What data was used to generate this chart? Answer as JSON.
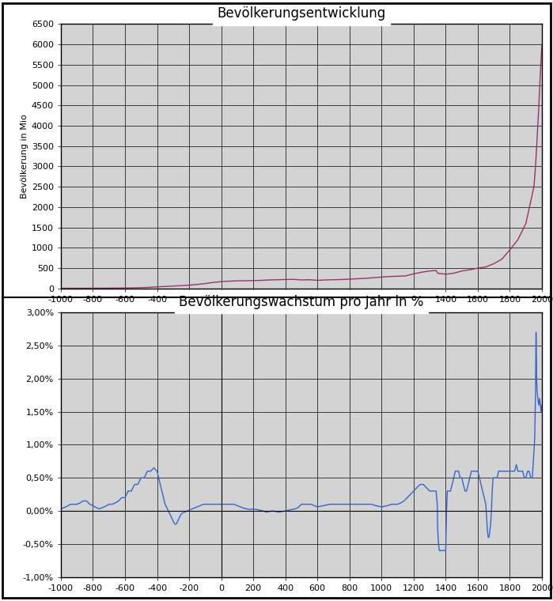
{
  "title1": "Bevölkerungsentwicklung",
  "title2": "Bevölkerungswachstum pro Jahr in %",
  "ylabel1": "Bevölkerung in Mio",
  "xmin": -1000,
  "xmax": 2000,
  "ylim1": [
    0,
    6500
  ],
  "ylim2": [
    -0.01,
    0.03
  ],
  "yticks1": [
    0,
    500,
    1000,
    1500,
    2000,
    2500,
    3000,
    3500,
    4000,
    4500,
    5000,
    5500,
    6000,
    6500
  ],
  "yticks2": [
    -0.01,
    -0.005,
    0.0,
    0.005,
    0.01,
    0.015,
    0.02,
    0.025,
    0.03
  ],
  "pop_color": "#993366",
  "growth_color": "#3366cc",
  "fig_bg_color": "#ffffff",
  "plot_bg_color": "#d3d3d3",
  "title_bg_color": "#ffffff",
  "pop_data": [
    [
      -1000,
      5
    ],
    [
      -950,
      5.2
    ],
    [
      -900,
      5.5
    ],
    [
      -850,
      6
    ],
    [
      -800,
      7
    ],
    [
      -750,
      8
    ],
    [
      -700,
      9
    ],
    [
      -650,
      10
    ],
    [
      -600,
      12
    ],
    [
      -550,
      15
    ],
    [
      -500,
      20
    ],
    [
      -450,
      28
    ],
    [
      -400,
      40
    ],
    [
      -350,
      50
    ],
    [
      -300,
      60
    ],
    [
      -250,
      70
    ],
    [
      -200,
      80
    ],
    [
      -150,
      100
    ],
    [
      -100,
      120
    ],
    [
      -50,
      150
    ],
    [
      0,
      170
    ],
    [
      50,
      180
    ],
    [
      100,
      188
    ],
    [
      150,
      190
    ],
    [
      200,
      195
    ],
    [
      250,
      200
    ],
    [
      300,
      210
    ],
    [
      350,
      215
    ],
    [
      400,
      220
    ],
    [
      450,
      225
    ],
    [
      500,
      210
    ],
    [
      550,
      215
    ],
    [
      600,
      200
    ],
    [
      650,
      210
    ],
    [
      700,
      215
    ],
    [
      750,
      220
    ],
    [
      800,
      230
    ],
    [
      850,
      240
    ],
    [
      900,
      250
    ],
    [
      950,
      265
    ],
    [
      1000,
      280
    ],
    [
      1050,
      295
    ],
    [
      1100,
      300
    ],
    [
      1150,
      310
    ],
    [
      1200,
      360
    ],
    [
      1250,
      400
    ],
    [
      1300,
      430
    ],
    [
      1340,
      443
    ],
    [
      1350,
      375
    ],
    [
      1400,
      350
    ],
    [
      1450,
      375
    ],
    [
      1500,
      430
    ],
    [
      1550,
      460
    ],
    [
      1600,
      500
    ],
    [
      1650,
      530
    ],
    [
      1700,
      610
    ],
    [
      1750,
      720
    ],
    [
      1800,
      950
    ],
    [
      1850,
      1200
    ],
    [
      1900,
      1600
    ],
    [
      1950,
      2500
    ],
    [
      1960,
      3000
    ],
    [
      1970,
      3700
    ],
    [
      1980,
      4430
    ],
    [
      1990,
      5300
    ],
    [
      2000,
      6000
    ]
  ],
  "growth_data": [
    [
      -1000,
      0.0003
    ],
    [
      -980,
      0.0005
    ],
    [
      -960,
      0.0007
    ],
    [
      -940,
      0.001
    ],
    [
      -920,
      0.001
    ],
    [
      -900,
      0.001
    ],
    [
      -880,
      0.0012
    ],
    [
      -860,
      0.0015
    ],
    [
      -840,
      0.0015
    ],
    [
      -820,
      0.001
    ],
    [
      -800,
      0.0008
    ],
    [
      -780,
      0.0005
    ],
    [
      -760,
      0.0003
    ],
    [
      -740,
      0.0005
    ],
    [
      -720,
      0.0007
    ],
    [
      -700,
      0.001
    ],
    [
      -680,
      0.001
    ],
    [
      -660,
      0.0012
    ],
    [
      -640,
      0.0015
    ],
    [
      -620,
      0.002
    ],
    [
      -600,
      0.002
    ],
    [
      -580,
      0.003
    ],
    [
      -560,
      0.003
    ],
    [
      -540,
      0.004
    ],
    [
      -520,
      0.004
    ],
    [
      -500,
      0.005
    ],
    [
      -480,
      0.005
    ],
    [
      -460,
      0.006
    ],
    [
      -440,
      0.006
    ],
    [
      -420,
      0.0065
    ],
    [
      -400,
      0.006
    ],
    [
      -390,
      0.005
    ],
    [
      -380,
      0.004
    ],
    [
      -370,
      0.003
    ],
    [
      -360,
      0.002
    ],
    [
      -350,
      0.001
    ],
    [
      -340,
      0.0005
    ],
    [
      -330,
      0.0
    ],
    [
      -320,
      -0.0005
    ],
    [
      -310,
      -0.001
    ],
    [
      -300,
      -0.0015
    ],
    [
      -290,
      -0.002
    ],
    [
      -280,
      -0.002
    ],
    [
      -270,
      -0.0015
    ],
    [
      -260,
      -0.001
    ],
    [
      -250,
      -0.0005
    ],
    [
      -240,
      -0.0003
    ],
    [
      -230,
      -0.0002
    ],
    [
      -220,
      -0.0001
    ],
    [
      -210,
      0.0
    ],
    [
      -200,
      0.0001
    ],
    [
      -190,
      0.0002
    ],
    [
      -180,
      0.0003
    ],
    [
      -170,
      0.0004
    ],
    [
      -160,
      0.0005
    ],
    [
      -150,
      0.0006
    ],
    [
      -140,
      0.0007
    ],
    [
      -130,
      0.0008
    ],
    [
      -120,
      0.0009
    ],
    [
      -110,
      0.001
    ],
    [
      -100,
      0.001
    ],
    [
      -90,
      0.001
    ],
    [
      -80,
      0.001
    ],
    [
      -70,
      0.001
    ],
    [
      -60,
      0.001
    ],
    [
      -50,
      0.001
    ],
    [
      -40,
      0.001
    ],
    [
      -30,
      0.001
    ],
    [
      -20,
      0.001
    ],
    [
      -10,
      0.001
    ],
    [
      0,
      0.001
    ],
    [
      20,
      0.001
    ],
    [
      40,
      0.001
    ],
    [
      60,
      0.001
    ],
    [
      80,
      0.001
    ],
    [
      100,
      0.0008
    ],
    [
      120,
      0.0006
    ],
    [
      140,
      0.0004
    ],
    [
      160,
      0.0003
    ],
    [
      180,
      0.0002
    ],
    [
      200,
      0.0003
    ],
    [
      220,
      0.0002
    ],
    [
      240,
      0.0001
    ],
    [
      260,
      0.0
    ],
    [
      280,
      -0.0002
    ],
    [
      300,
      -0.0001
    ],
    [
      320,
      0.0
    ],
    [
      340,
      -0.0001
    ],
    [
      360,
      -0.0002
    ],
    [
      380,
      -0.0001
    ],
    [
      400,
      0.0
    ],
    [
      420,
      0.0001
    ],
    [
      440,
      0.0002
    ],
    [
      460,
      0.0003
    ],
    [
      480,
      0.0005
    ],
    [
      500,
      0.001
    ],
    [
      520,
      0.001
    ],
    [
      540,
      0.001
    ],
    [
      560,
      0.001
    ],
    [
      580,
      0.0008
    ],
    [
      600,
      0.0006
    ],
    [
      620,
      0.0007
    ],
    [
      640,
      0.0008
    ],
    [
      660,
      0.0009
    ],
    [
      680,
      0.001
    ],
    [
      700,
      0.001
    ],
    [
      720,
      0.001
    ],
    [
      740,
      0.001
    ],
    [
      760,
      0.001
    ],
    [
      780,
      0.001
    ],
    [
      800,
      0.001
    ],
    [
      820,
      0.001
    ],
    [
      840,
      0.001
    ],
    [
      860,
      0.001
    ],
    [
      880,
      0.001
    ],
    [
      900,
      0.001
    ],
    [
      920,
      0.001
    ],
    [
      940,
      0.001
    ],
    [
      960,
      0.0008
    ],
    [
      980,
      0.0007
    ],
    [
      1000,
      0.0006
    ],
    [
      1020,
      0.0007
    ],
    [
      1040,
      0.0008
    ],
    [
      1060,
      0.001
    ],
    [
      1080,
      0.001
    ],
    [
      1100,
      0.001
    ],
    [
      1120,
      0.0012
    ],
    [
      1140,
      0.0015
    ],
    [
      1160,
      0.002
    ],
    [
      1180,
      0.0025
    ],
    [
      1200,
      0.003
    ],
    [
      1220,
      0.0035
    ],
    [
      1240,
      0.004
    ],
    [
      1260,
      0.004
    ],
    [
      1280,
      0.0035
    ],
    [
      1300,
      0.003
    ],
    [
      1320,
      0.003
    ],
    [
      1340,
      0.003
    ],
    [
      1347,
      0.001
    ],
    [
      1350,
      -0.003
    ],
    [
      1355,
      -0.005
    ],
    [
      1360,
      -0.006
    ],
    [
      1370,
      -0.006
    ],
    [
      1380,
      -0.006
    ],
    [
      1390,
      -0.006
    ],
    [
      1400,
      -0.006
    ],
    [
      1405,
      0.0
    ],
    [
      1410,
      0.003
    ],
    [
      1420,
      0.003
    ],
    [
      1430,
      0.003
    ],
    [
      1440,
      0.004
    ],
    [
      1450,
      0.005
    ],
    [
      1460,
      0.006
    ],
    [
      1470,
      0.006
    ],
    [
      1480,
      0.006
    ],
    [
      1490,
      0.005
    ],
    [
      1500,
      0.005
    ],
    [
      1510,
      0.004
    ],
    [
      1520,
      0.003
    ],
    [
      1530,
      0.003
    ],
    [
      1540,
      0.004
    ],
    [
      1550,
      0.005
    ],
    [
      1560,
      0.006
    ],
    [
      1570,
      0.006
    ],
    [
      1580,
      0.006
    ],
    [
      1590,
      0.006
    ],
    [
      1600,
      0.006
    ],
    [
      1610,
      0.005
    ],
    [
      1620,
      0.004
    ],
    [
      1630,
      0.003
    ],
    [
      1640,
      0.002
    ],
    [
      1650,
      0.001
    ],
    [
      1655,
      -0.001
    ],
    [
      1660,
      -0.003
    ],
    [
      1665,
      -0.004
    ],
    [
      1670,
      -0.004
    ],
    [
      1675,
      -0.003
    ],
    [
      1680,
      -0.002
    ],
    [
      1685,
      0.0
    ],
    [
      1690,
      0.003
    ],
    [
      1695,
      0.005
    ],
    [
      1700,
      0.005
    ],
    [
      1710,
      0.005
    ],
    [
      1720,
      0.005
    ],
    [
      1730,
      0.006
    ],
    [
      1740,
      0.006
    ],
    [
      1750,
      0.006
    ],
    [
      1760,
      0.006
    ],
    [
      1770,
      0.006
    ],
    [
      1780,
      0.006
    ],
    [
      1790,
      0.006
    ],
    [
      1800,
      0.006
    ],
    [
      1810,
      0.006
    ],
    [
      1820,
      0.006
    ],
    [
      1830,
      0.006
    ],
    [
      1840,
      0.007
    ],
    [
      1850,
      0.006
    ],
    [
      1860,
      0.006
    ],
    [
      1870,
      0.006
    ],
    [
      1880,
      0.006
    ],
    [
      1890,
      0.005
    ],
    [
      1900,
      0.005
    ],
    [
      1910,
      0.006
    ],
    [
      1920,
      0.006
    ],
    [
      1930,
      0.005
    ],
    [
      1940,
      0.005
    ],
    [
      1950,
      0.009
    ],
    [
      1955,
      0.011
    ],
    [
      1960,
      0.018
    ],
    [
      1963,
      0.027
    ],
    [
      1965,
      0.025
    ],
    [
      1967,
      0.02
    ],
    [
      1970,
      0.018
    ],
    [
      1975,
      0.017
    ],
    [
      1980,
      0.016
    ],
    [
      1985,
      0.017
    ],
    [
      1990,
      0.016
    ],
    [
      1995,
      0.015
    ],
    [
      2000,
      0.016
    ]
  ]
}
